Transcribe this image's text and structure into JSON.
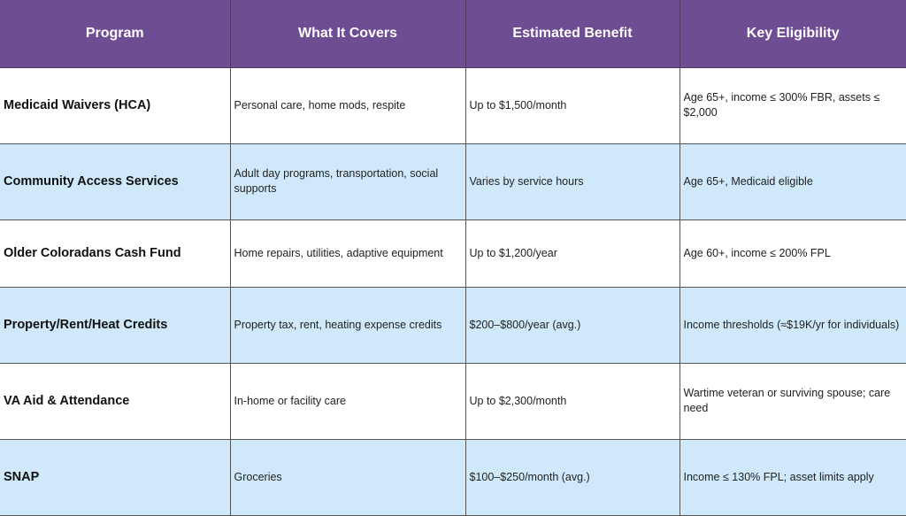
{
  "headers": [
    "Program",
    "What It Covers",
    "Estimated Benefit",
    "Key Eligibility"
  ],
  "rows": [
    [
      "Medicaid Waivers (HCA)",
      "Personal care, home mods, respite",
      "Up to $1,500/month",
      "Age 65+, income ≤ 300% FBR, assets ≤ $2,000"
    ],
    [
      "Community Access Services",
      "Adult day programs, transportation, social supports",
      "Varies by service hours",
      "Age 65+, Medicaid eligible"
    ],
    [
      "Older Coloradans Cash Fund",
      "Home repairs, utilities, adaptive equipment",
      "Up to $1,200/year",
      "Age 60+, income ≤ 200% FPL"
    ],
    [
      "Property/Rent/Heat Credits",
      "Property tax, rent, heating expense credits",
      "$200–$800/year (avg.)",
      "Income thresholds (≈$19K/yr for individuals)"
    ],
    [
      "VA Aid & Attendance",
      "In-home or facility care",
      "Up to $2,300/month",
      "Wartime veteran or surviving spouse; care need"
    ],
    [
      "SNAP",
      "Groceries",
      "$100–$250/month (avg.)",
      "Income ≤ 130% FPL; asset limits apply"
    ]
  ],
  "colors": {
    "header_bg": "#6e4d93",
    "row_alt_bg": "#cfe9fb",
    "row_bg": "#ffffff"
  }
}
